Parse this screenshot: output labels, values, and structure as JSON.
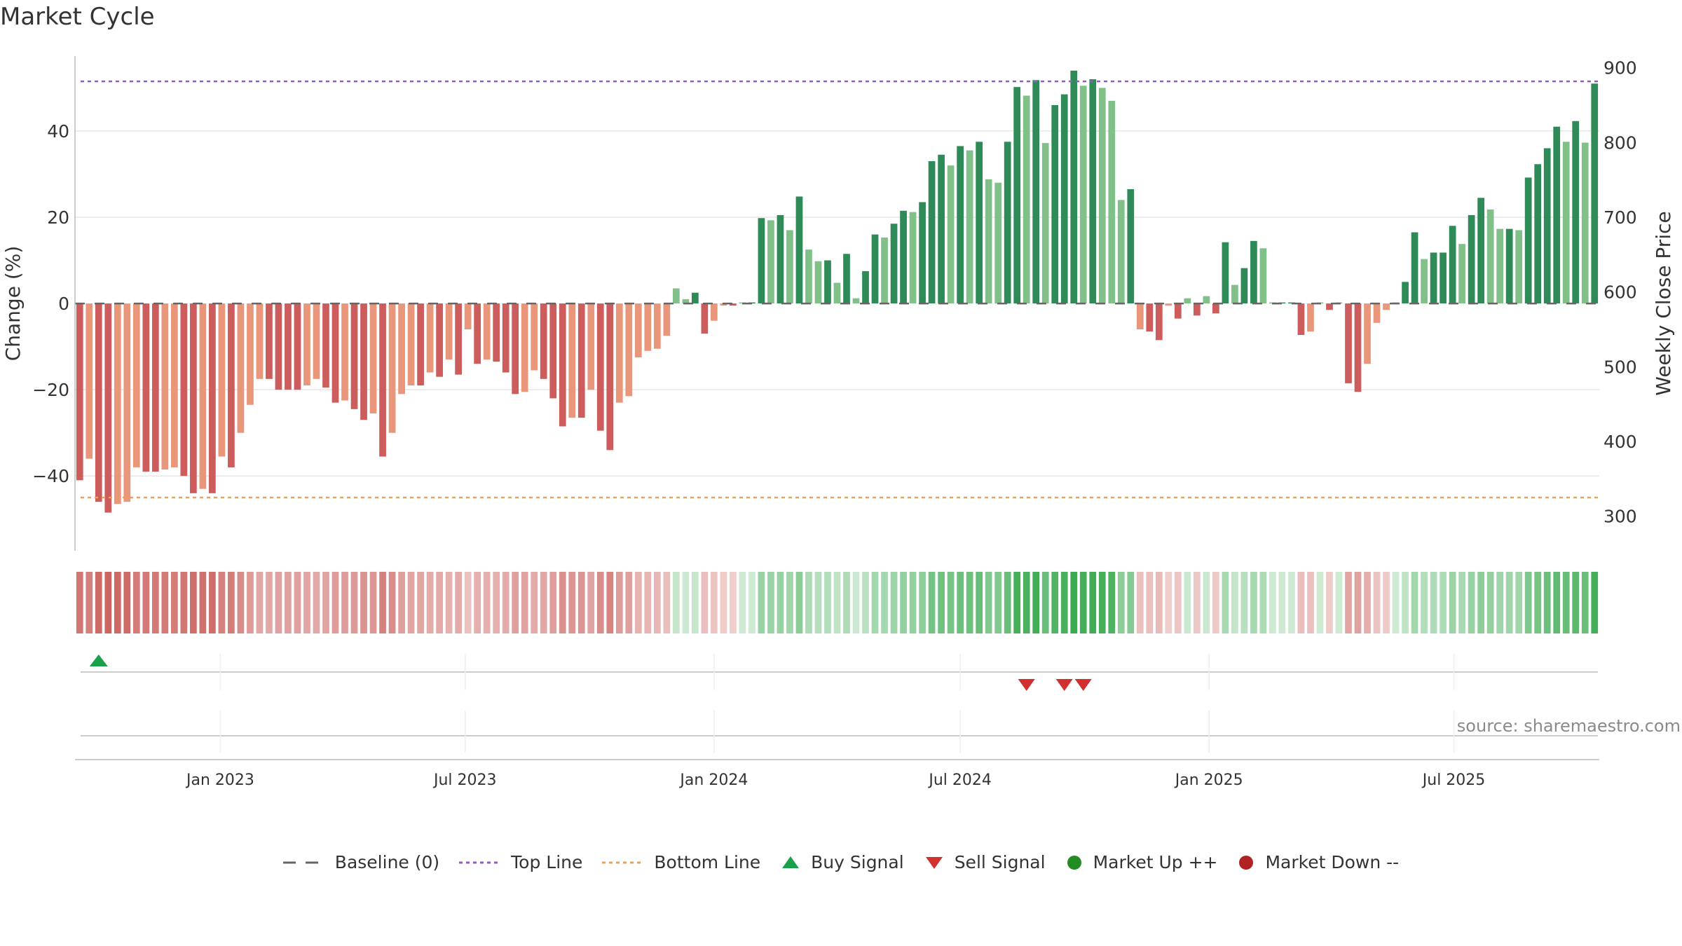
{
  "title": "Market Cycle",
  "source": "source: sharemaestro.com",
  "colors": {
    "up_dark": "#2e8b57",
    "up_light": "#82c08a",
    "down_dark": "#cd5c5c",
    "down_light": "#e9967a",
    "top_line": "#9955cc",
    "bottom_line": "#f0a050",
    "buy": "#1aa04a",
    "sell": "#d22f2f",
    "market_up": "#228b22",
    "market_down": "#b22222",
    "baseline": "#666666"
  },
  "chart_data": {
    "type": "bar",
    "ylabel": "Change (%)",
    "y2label": "Weekly Close Price",
    "ylim": [
      -58,
      59
    ],
    "yticks": [
      -40,
      -20,
      0,
      20,
      40
    ],
    "y2ticks": [
      300,
      400,
      500,
      600,
      700,
      800,
      900
    ],
    "y2lim": [
      250,
      925
    ],
    "top_line": 51.5,
    "bottom_line": -45,
    "x_start": "2022-09-19",
    "x_ticks": [
      {
        "label": "Jan 2023",
        "date": "2023-01-01"
      },
      {
        "label": "Jul 2023",
        "date": "2023-07-01"
      },
      {
        "label": "Jan 2024",
        "date": "2024-01-01"
      },
      {
        "label": "Jul 2024",
        "date": "2024-07-01"
      },
      {
        "label": "Jan 2025",
        "date": "2025-01-01"
      },
      {
        "label": "Jul 2025",
        "date": "2025-07-01"
      }
    ],
    "values": [
      -41,
      -36,
      -46,
      -48.5,
      -46.5,
      -46,
      -38,
      -39,
      -39,
      -38.5,
      -38,
      -40,
      -44,
      -43,
      -44,
      -35.5,
      -38,
      -30,
      -23.5,
      -17.5,
      -17.5,
      -20,
      -20,
      -20,
      -19,
      -17.5,
      -19.5,
      -23,
      -22.5,
      -24.5,
      -27,
      -25.5,
      -35.5,
      -30,
      -21,
      -19,
      -19,
      -16,
      -17,
      -13,
      -16.5,
      -6,
      -14,
      -13,
      -13.5,
      -16,
      -21,
      -20.5,
      -15.5,
      -17.5,
      -22,
      -28.5,
      -26.5,
      -26.5,
      -20,
      -29.5,
      -34,
      -23,
      -21.5,
      -12.5,
      -11,
      -10.5,
      -7.5,
      3.5,
      1,
      2.5,
      -7,
      -4,
      -0.5,
      -0.5,
      0,
      0,
      19.8,
      19.3,
      20.5,
      17,
      24.8,
      12.5,
      9.8,
      10,
      4.8,
      11.5,
      1.2,
      7.5,
      16,
      15.3,
      18.5,
      21.5,
      21.2,
      23.5,
      33,
      34.5,
      32,
      36.5,
      35.5,
      37.5,
      28.8,
      28,
      37.5,
      50.2,
      48.2,
      51.8,
      37.2,
      46,
      48.5,
      54,
      50.5,
      52,
      50,
      47,
      24,
      26.5,
      -6,
      -6.5,
      -8.5,
      -0.5,
      -3.5,
      1.2,
      -2.8,
      1.7,
      -2.3,
      14.2,
      4.3,
      8.2,
      14.5,
      12.8,
      0,
      0,
      0,
      -7.3,
      -6.5,
      0,
      -1.5,
      0,
      -18.5,
      -20.5,
      -14,
      -4.5,
      -1.5,
      0,
      5,
      16.5,
      10.3,
      11.8,
      11.8,
      18,
      13.8,
      20.5,
      24.5,
      21.8,
      17.3,
      17.3,
      17,
      29.2,
      32.3,
      36,
      41,
      37.5,
      42.3,
      37.3,
      51
    ],
    "buy_signals": [
      2
    ],
    "sell_signals": [
      100,
      104,
      106
    ],
    "legend": [
      "Baseline (0)",
      "Top Line",
      "Bottom Line",
      "Buy Signal",
      "Sell Signal",
      "Market Up ++",
      "Market Down --"
    ]
  }
}
